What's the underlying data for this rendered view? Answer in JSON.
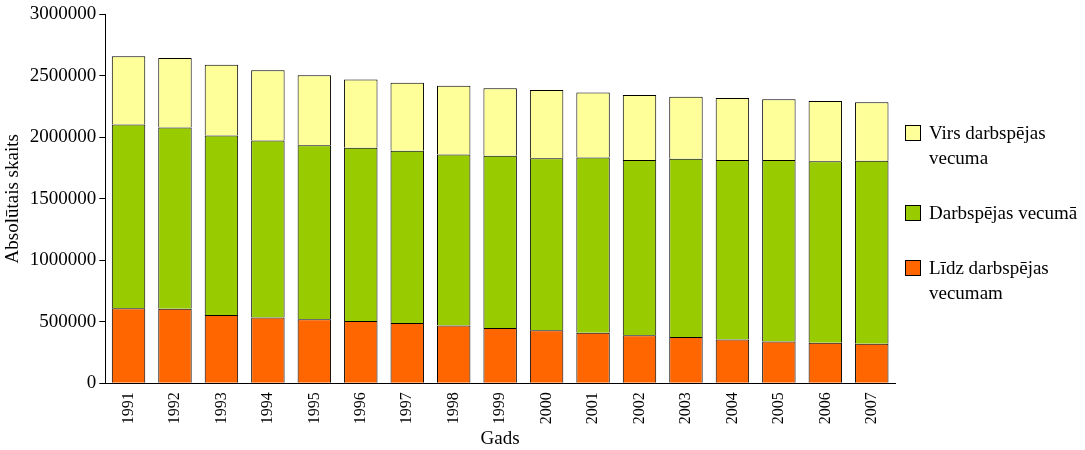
{
  "chart_data": {
    "type": "bar",
    "stacked": true,
    "xlabel": "Gads",
    "ylabel": "Absolūtais skaits",
    "categories": [
      "1991",
      "1992",
      "1993",
      "1994",
      "1995",
      "1996",
      "1997",
      "1998",
      "1999",
      "2000",
      "2001",
      "2002",
      "2003",
      "2004",
      "2005",
      "2006",
      "2007"
    ],
    "ylim": [
      0,
      3000000
    ],
    "yticks": [
      0,
      500000,
      1000000,
      1500000,
      2000000,
      2500000,
      3000000
    ],
    "grid": false,
    "legend": "right",
    "series": [
      {
        "name": "Līdz darbspējas vecumam",
        "color": "#ff6600",
        "values": [
          610000,
          605000,
          555000,
          535000,
          520000,
          505000,
          490000,
          470000,
          450000,
          430000,
          410000,
          390000,
          375000,
          355000,
          340000,
          330000,
          320000
        ]
      },
      {
        "name": "Darbspējas vecumā",
        "color": "#99cc00",
        "values": [
          1495000,
          1475000,
          1460000,
          1440000,
          1415000,
          1410000,
          1400000,
          1390000,
          1400000,
          1400000,
          1425000,
          1425000,
          1450000,
          1460000,
          1475000,
          1475000,
          1490000
        ]
      },
      {
        "name": "Virs darbspējas vecuma",
        "color": "#ffff99",
        "values": [
          555000,
          565000,
          575000,
          570000,
          570000,
          555000,
          555000,
          560000,
          550000,
          555000,
          530000,
          530000,
          505000,
          505000,
          495000,
          490000,
          475000
        ]
      }
    ]
  }
}
